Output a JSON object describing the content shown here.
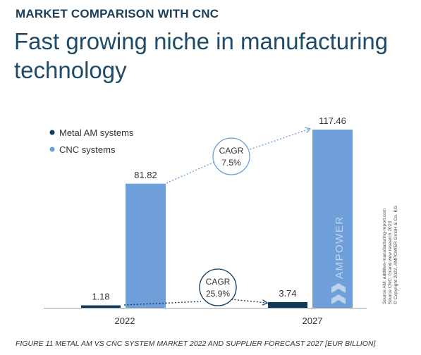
{
  "eyebrow": "MARKET COMPARISON WITH CNC",
  "headline": "Fast growing niche in manufacturing technology",
  "chart_data": {
    "type": "bar",
    "categories": [
      "2022",
      "2027"
    ],
    "series": [
      {
        "name": "Metal AM systems",
        "color": "#0e3a5c",
        "values": [
          1.18,
          3.74
        ]
      },
      {
        "name": "CNC systems",
        "color": "#6e9fd8",
        "values": [
          81.82,
          117.46
        ]
      }
    ],
    "data_labels": {
      "metal": [
        "1.18",
        "3.74"
      ],
      "cnc": [
        "81.82",
        "117.46"
      ]
    },
    "ylim": [
      0,
      117.46
    ],
    "legend_position": "top-left",
    "annotations": [
      {
        "label": "CAGR",
        "value": "7.5%",
        "series": "CNC systems"
      },
      {
        "label": "CAGR",
        "value": "25.9%",
        "series": "Metal AM systems"
      }
    ],
    "watermark": "AMPOWER"
  },
  "source_lines": [
    "Source AM: additive-manufacturing-report.com",
    "Source CNC: Grand view research 2023",
    "© Copyright 2022, AMPOWER GmbH & Co. KG"
  ],
  "caption": "FIGURE 11 METAL AM VS CNC SYSTEM MARKET 2022 AND SUPPLIER FORECAST 2027 [EUR BILLION]"
}
